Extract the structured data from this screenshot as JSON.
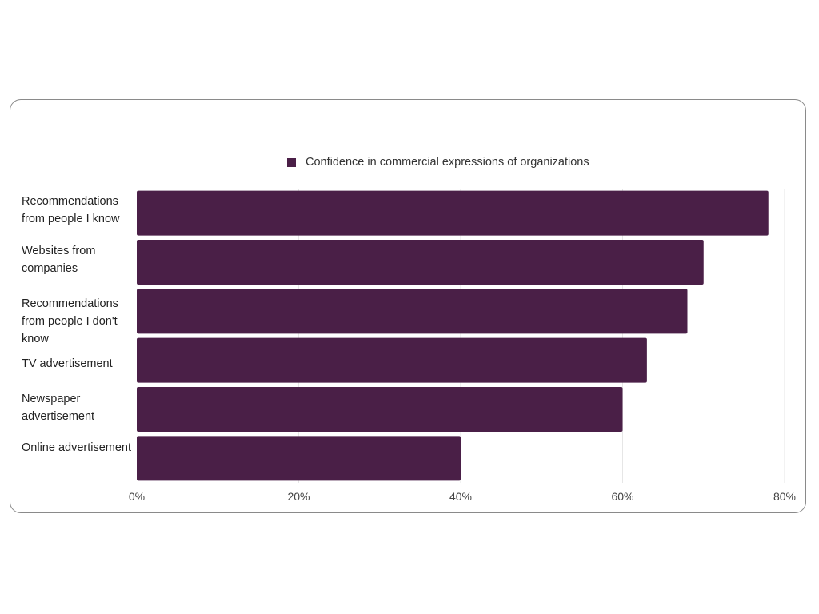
{
  "chart_data": {
    "type": "bar",
    "orientation": "horizontal",
    "categories": [
      "Recommendations from people I know",
      "Websites from companies",
      "Recommendations from people I don't know",
      "TV advertisement",
      "Newspaper advertisement",
      "Online advertisement"
    ],
    "series": [
      {
        "name": "Confidence in commercial expressions of organizations",
        "values": [
          78,
          70,
          68,
          63,
          60,
          40
        ],
        "color": "#4a1f47"
      }
    ],
    "xlim": [
      0,
      80
    ],
    "xticks": [
      0,
      20,
      40,
      60,
      80
    ],
    "tick_labels": [
      "0%",
      "20%",
      "40%",
      "60%",
      "80%"
    ],
    "grid": true,
    "legend_position": "top"
  }
}
